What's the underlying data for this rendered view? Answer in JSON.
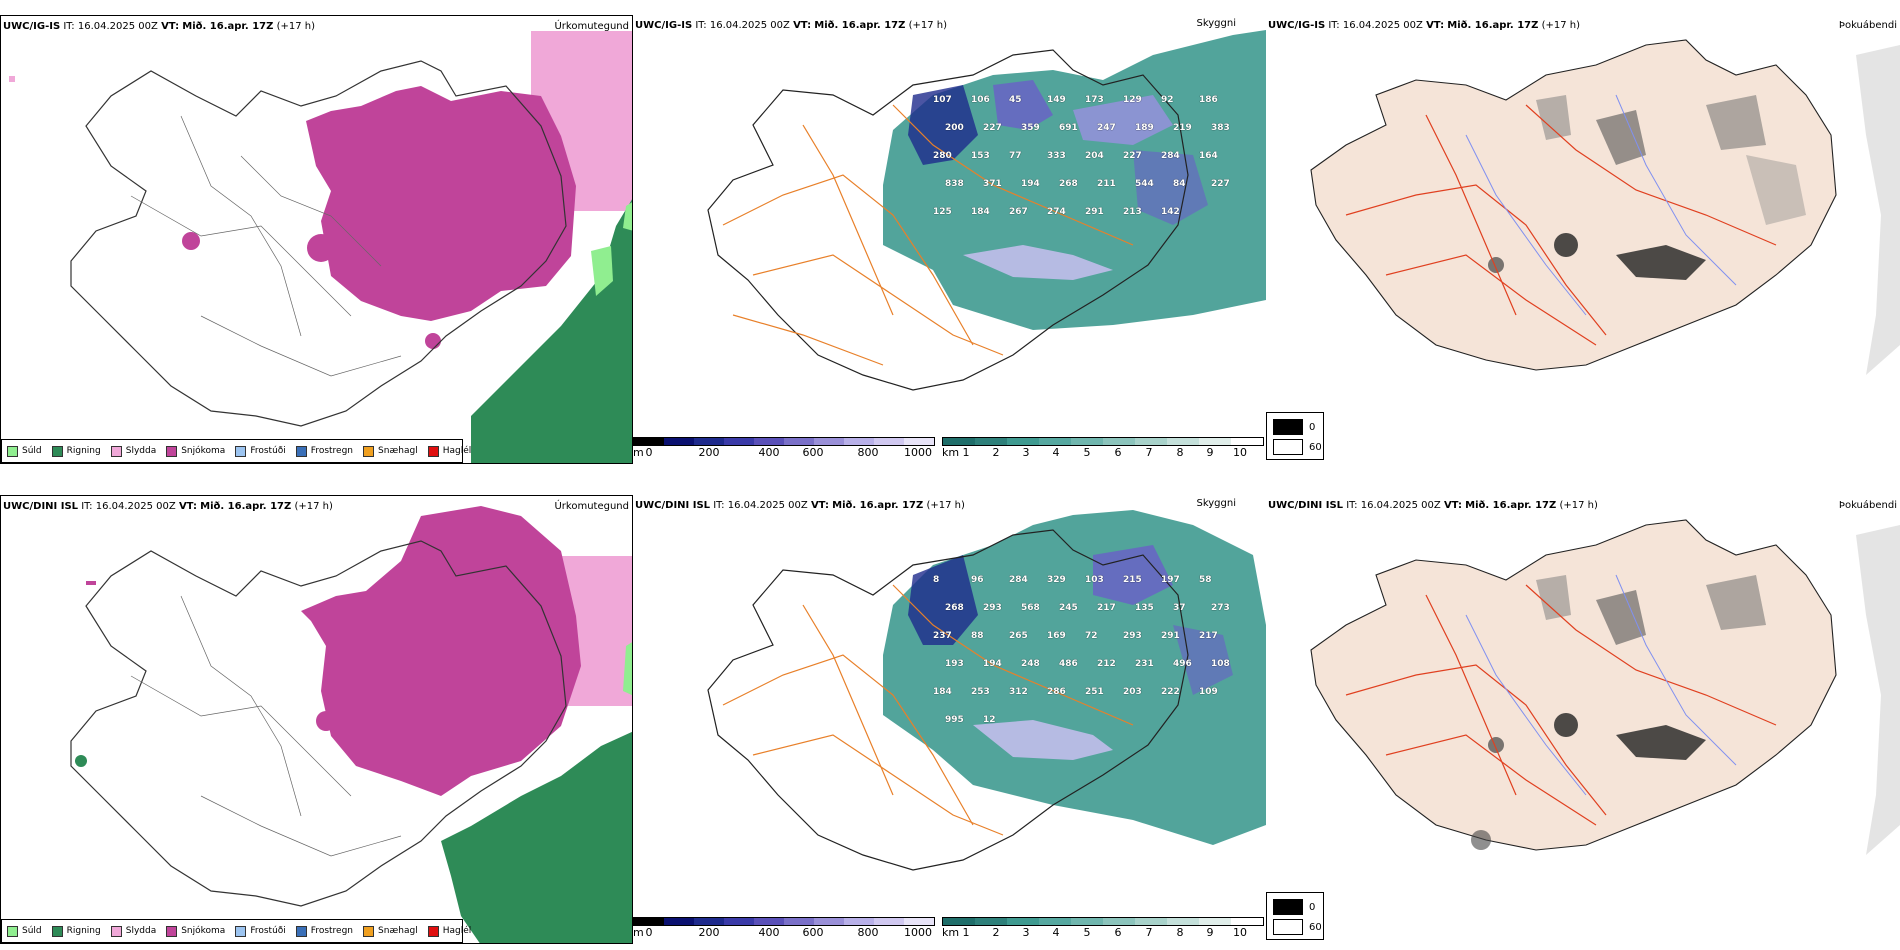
{
  "common": {
    "issue_time": "IT: 16.04.2025 00Z",
    "valid_prefix": "VT:",
    "valid_time": "Mið. 16.apr. 17Z",
    "lead": "(+17 h)"
  },
  "rows": [
    {
      "model": "UWC/IG-IS",
      "panels": {
        "precip_label": "Úrkomutegund",
        "cloud_label": "Skyggni",
        "fog_label": "Þokuábendi"
      },
      "cloud_numbers": [
        "107",
        "106",
        "45",
        "149",
        "173",
        "129",
        "92",
        "186",
        "200",
        "227",
        "359",
        "691",
        "247",
        "189",
        "219",
        "383",
        "280",
        "153",
        "77",
        "333",
        "204",
        "227",
        "284",
        "164",
        "838",
        "371",
        "194",
        "268",
        "211",
        "544",
        "84",
        "227",
        "125",
        "184",
        "267",
        "274",
        "291",
        "213",
        "142"
      ]
    },
    {
      "model": "UWC/DINI ISL",
      "panels": {
        "precip_label": "Úrkomutegund",
        "cloud_label": "Skyggni",
        "fog_label": "Þokuábendi"
      },
      "cloud_numbers": [
        "8",
        "96",
        "284",
        "329",
        "103",
        "215",
        "197",
        "58",
        "268",
        "293",
        "568",
        "245",
        "217",
        "135",
        "37",
        "273",
        "237",
        "88",
        "265",
        "169",
        "72",
        "293",
        "291",
        "217",
        "193",
        "194",
        "248",
        "486",
        "212",
        "231",
        "496",
        "108",
        "184",
        "253",
        "312",
        "286",
        "251",
        "203",
        "222",
        "109",
        "995",
        "12"
      ]
    }
  ],
  "precip_legend": [
    {
      "label": "Súld",
      "color": "#90ee90"
    },
    {
      "label": "Rigning",
      "color": "#2e8b57"
    },
    {
      "label": "Slydda",
      "color": "#f0a8d8"
    },
    {
      "label": "Snjókoma",
      "color": "#c0449a"
    },
    {
      "label": "Frostúði",
      "color": "#9cc4f0"
    },
    {
      "label": "Frostregn",
      "color": "#3a6fb8"
    },
    {
      "label": "Snæhagl",
      "color": "#f0a020"
    },
    {
      "label": "Haglél",
      "color": "#e01010"
    }
  ],
  "cbar_m": {
    "unit": "m",
    "ticks": [
      "0",
      "200",
      "400",
      "600",
      "800",
      "1000"
    ]
  },
  "cbar_km": {
    "unit": "km",
    "ticks": [
      "1",
      "2",
      "3",
      "4",
      "5",
      "6",
      "7",
      "8",
      "9",
      "10"
    ]
  },
  "fog_legend": {
    "black": "0",
    "white": "60"
  },
  "colors": {
    "snow": "#c0449a",
    "sleet": "#f0a8d8",
    "rain": "#2e8b57",
    "drizzle": "#90ee90",
    "teal": "#3f9a90",
    "land": "#f5e4d8",
    "road": "#e8802a",
    "redroad": "#e04020",
    "river": "#8090f0"
  }
}
